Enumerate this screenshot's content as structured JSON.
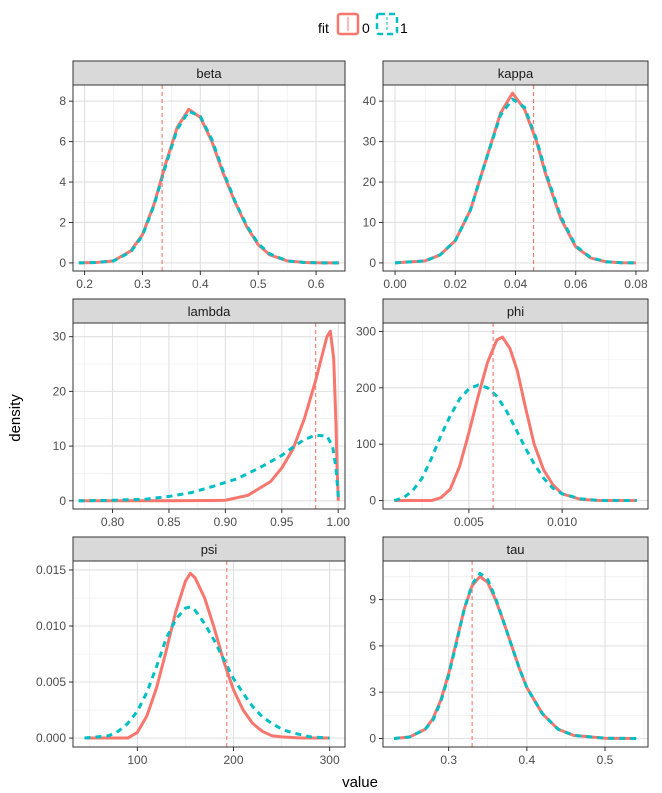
{
  "chart_data": {
    "type": "line",
    "xlabel": "value",
    "ylabel": "density",
    "legend": {
      "title": "fit",
      "position": "top",
      "entries": [
        {
          "label": "0",
          "color": "#F8766D",
          "linetype": "solid"
        },
        {
          "label": "1",
          "color": "#00BFC4",
          "linetype": "dashed"
        }
      ]
    },
    "grid": true,
    "panels": [
      {
        "name": "beta",
        "xlim": [
          0.18,
          0.65
        ],
        "ylim": [
          -0.4,
          8.8
        ],
        "xticks": [
          0.2,
          0.3,
          0.4,
          0.5,
          0.6
        ],
        "xtick_labels": [
          "0.2",
          "0.3",
          "0.4",
          "0.5",
          "0.6"
        ],
        "yticks": [
          0,
          2,
          4,
          6,
          8
        ],
        "ytick_labels": [
          "0",
          "2",
          "4",
          "6",
          "8"
        ],
        "vline": 0.334,
        "series": [
          {
            "name": "0",
            "x": [
              0.19,
              0.22,
              0.25,
              0.28,
              0.3,
              0.32,
              0.34,
              0.36,
              0.38,
              0.4,
              0.42,
              0.44,
              0.46,
              0.48,
              0.5,
              0.52,
              0.55,
              0.58,
              0.61,
              0.64
            ],
            "y": [
              0,
              0.02,
              0.1,
              0.6,
              1.4,
              2.9,
              4.9,
              6.7,
              7.6,
              7.2,
              6.0,
              4.4,
              3.0,
              1.8,
              0.9,
              0.4,
              0.1,
              0.02,
              0,
              0
            ]
          },
          {
            "name": "1",
            "x": [
              0.19,
              0.22,
              0.25,
              0.28,
              0.3,
              0.32,
              0.34,
              0.36,
              0.38,
              0.4,
              0.42,
              0.44,
              0.46,
              0.48,
              0.5,
              0.52,
              0.55,
              0.58,
              0.61,
              0.64
            ],
            "y": [
              0,
              0.02,
              0.1,
              0.55,
              1.35,
              2.85,
              4.8,
              6.6,
              7.5,
              7.25,
              6.1,
              4.5,
              3.05,
              1.85,
              0.95,
              0.45,
              0.1,
              0.02,
              0,
              0
            ]
          }
        ]
      },
      {
        "name": "kappa",
        "xlim": [
          -0.004,
          0.084
        ],
        "ylim": [
          -2,
          44
        ],
        "xticks": [
          0.0,
          0.02,
          0.04,
          0.06,
          0.08
        ],
        "xtick_labels": [
          "0.00",
          "0.02",
          "0.04",
          "0.06",
          "0.08"
        ],
        "yticks": [
          0,
          10,
          20,
          30,
          40
        ],
        "ytick_labels": [
          "0",
          "10",
          "20",
          "30",
          "40"
        ],
        "vline": 0.046,
        "series": [
          {
            "name": "0",
            "x": [
              0.0,
              0.01,
              0.015,
              0.02,
              0.025,
              0.03,
              0.035,
              0.039,
              0.043,
              0.047,
              0.05,
              0.055,
              0.06,
              0.065,
              0.07,
              0.075,
              0.08
            ],
            "y": [
              0,
              0.5,
              2.0,
              5.5,
              13,
              25,
              37,
              42,
              38,
              30,
              22,
              11,
              4,
              1.2,
              0.3,
              0.05,
              0
            ]
          },
          {
            "name": "1",
            "x": [
              0.0,
              0.01,
              0.015,
              0.02,
              0.025,
              0.03,
              0.035,
              0.039,
              0.043,
              0.047,
              0.05,
              0.055,
              0.06,
              0.065,
              0.07,
              0.075,
              0.08
            ],
            "y": [
              0,
              0.5,
              2.0,
              5.5,
              13,
              25,
              36.5,
              40.5,
              38.5,
              30.5,
              22.5,
              11.5,
              4.2,
              1.3,
              0.3,
              0.05,
              0
            ]
          }
        ]
      },
      {
        "name": "lambda",
        "xlim": [
          0.765,
          1.006
        ],
        "ylim": [
          -1.5,
          32.5
        ],
        "xticks": [
          0.8,
          0.85,
          0.9,
          0.95,
          1.0
        ],
        "xtick_labels": [
          "0.80",
          "0.85",
          "0.90",
          "0.95",
          "1.00"
        ],
        "yticks": [
          0,
          10,
          20,
          30
        ],
        "ytick_labels": [
          "0",
          "10",
          "20",
          "30"
        ],
        "vline": 0.98,
        "series": [
          {
            "name": "0",
            "x": [
              0.77,
              0.85,
              0.89,
              0.9,
              0.92,
              0.94,
              0.95,
              0.96,
              0.97,
              0.98,
              0.985,
              0.99,
              0.993,
              0.996,
              0.998,
              0.999,
              1.0,
              1.0
            ],
            "y": [
              0,
              0,
              0.05,
              0.1,
              1.0,
              3.5,
              6,
              9.5,
              15,
              22,
              26,
              30,
              31,
              26,
              14,
              6,
              0.5,
              0
            ]
          },
          {
            "name": "1",
            "x": [
              0.77,
              0.8,
              0.83,
              0.85,
              0.87,
              0.89,
              0.91,
              0.93,
              0.95,
              0.96,
              0.97,
              0.98,
              0.99,
              0.995,
              0.998,
              1.0,
              1.0
            ],
            "y": [
              0,
              0.1,
              0.3,
              0.8,
              1.5,
              2.7,
              4.0,
              6.0,
              8.3,
              9.8,
              11.2,
              12,
              11.8,
              10,
              6,
              1,
              0
            ]
          }
        ]
      },
      {
        "name": "phi",
        "xlim": [
          0.0004,
          0.0146
        ],
        "ylim": [
          -15,
          315
        ],
        "xticks": [
          0.005,
          0.01
        ],
        "xtick_labels": [
          "0.005",
          "0.010"
        ],
        "yticks": [
          0,
          100,
          200,
          300
        ],
        "ytick_labels": [
          "0",
          "100",
          "200",
          "300"
        ],
        "vline": 0.0063,
        "series": [
          {
            "name": "0",
            "x": [
              0.001,
              0.003,
              0.0035,
              0.004,
              0.0045,
              0.005,
              0.0055,
              0.006,
              0.0065,
              0.0068,
              0.0072,
              0.0076,
              0.008,
              0.0085,
              0.009,
              0.0095,
              0.01,
              0.011,
              0.012,
              0.014
            ],
            "y": [
              0,
              0,
              5,
              20,
              60,
              120,
              185,
              245,
              285,
              290,
              270,
              230,
              170,
              100,
              55,
              28,
              12,
              2,
              0,
              0
            ]
          },
          {
            "name": "1",
            "x": [
              0.001,
              0.0015,
              0.002,
              0.0025,
              0.003,
              0.0035,
              0.004,
              0.0045,
              0.005,
              0.0055,
              0.006,
              0.0065,
              0.007,
              0.0075,
              0.008,
              0.0085,
              0.009,
              0.0095,
              0.01,
              0.011,
              0.012,
              0.014
            ],
            "y": [
              0,
              5,
              18,
              40,
              75,
              115,
              150,
              180,
              198,
              205,
              200,
              185,
              160,
              128,
              95,
              65,
              40,
              22,
              12,
              3,
              0,
              0
            ]
          }
        ]
      },
      {
        "name": "psi",
        "xlim": [
          33,
          316
        ],
        "ylim": [
          -0.0008,
          0.0158
        ],
        "xticks": [
          100,
          200,
          300
        ],
        "xtick_labels": [
          "100",
          "200",
          "300"
        ],
        "yticks": [
          0,
          0.005,
          0.01,
          0.015
        ],
        "ytick_labels": [
          "0.000",
          "0.005",
          "0.010",
          "0.015"
        ],
        "vline": 193,
        "series": [
          {
            "name": "0",
            "x": [
              45,
              90,
              100,
              110,
              120,
              130,
              140,
              150,
              155,
              160,
              170,
              180,
              190,
              200,
              210,
              220,
              230,
              240,
              250,
              270,
              300
            ],
            "y": [
              0,
              0,
              0.0005,
              0.002,
              0.0045,
              0.0078,
              0.0113,
              0.014,
              0.0147,
              0.0143,
              0.0125,
              0.0098,
              0.0068,
              0.0043,
              0.0025,
              0.0013,
              0.0006,
              0.0002,
              0.0001,
              0,
              0
            ]
          },
          {
            "name": "1",
            "x": [
              45,
              70,
              80,
              90,
              100,
              110,
              120,
              130,
              140,
              150,
              155,
              160,
              170,
              180,
              190,
              200,
              210,
              220,
              230,
              240,
              250,
              260,
              270,
              280,
              300
            ],
            "y": [
              0,
              0.0002,
              0.0006,
              0.0013,
              0.0024,
              0.0041,
              0.0064,
              0.0089,
              0.0106,
              0.0116,
              0.0117,
              0.0114,
              0.0102,
              0.0087,
              0.007,
              0.0053,
              0.004,
              0.0028,
              0.0019,
              0.0013,
              0.0008,
              0.0005,
              0.0003,
              0.0001,
              0
            ]
          }
        ]
      },
      {
        "name": "tau",
        "xlim": [
          0.216,
          0.555
        ],
        "ylim": [
          -0.55,
          11.5
        ],
        "xticks": [
          0.3,
          0.4,
          0.5
        ],
        "xtick_labels": [
          "0.3",
          "0.4",
          "0.5"
        ],
        "yticks": [
          0,
          3,
          6,
          9
        ],
        "ytick_labels": [
          "0",
          "3",
          "6",
          "9"
        ],
        "vline": 0.33,
        "series": [
          {
            "name": "0",
            "x": [
              0.23,
              0.25,
              0.27,
              0.28,
              0.29,
              0.3,
              0.31,
              0.32,
              0.33,
              0.34,
              0.35,
              0.36,
              0.37,
              0.38,
              0.39,
              0.4,
              0.42,
              0.44,
              0.46,
              0.5,
              0.54
            ],
            "y": [
              0,
              0.1,
              0.6,
              1.3,
              2.5,
              4.2,
              6.3,
              8.4,
              9.9,
              10.5,
              10.1,
              9.0,
              7.6,
              6.1,
              4.6,
              3.3,
              1.6,
              0.6,
              0.2,
              0.02,
              0
            ]
          },
          {
            "name": "1",
            "x": [
              0.23,
              0.25,
              0.27,
              0.28,
              0.29,
              0.3,
              0.31,
              0.32,
              0.33,
              0.34,
              0.35,
              0.36,
              0.37,
              0.38,
              0.39,
              0.4,
              0.42,
              0.44,
              0.46,
              0.5,
              0.54
            ],
            "y": [
              0,
              0.1,
              0.6,
              1.2,
              2.4,
              4.1,
              6.2,
              8.4,
              10.0,
              10.7,
              10.3,
              9.1,
              7.6,
              6.1,
              4.6,
              3.3,
              1.6,
              0.6,
              0.2,
              0.02,
              0
            ]
          }
        ]
      }
    ]
  }
}
